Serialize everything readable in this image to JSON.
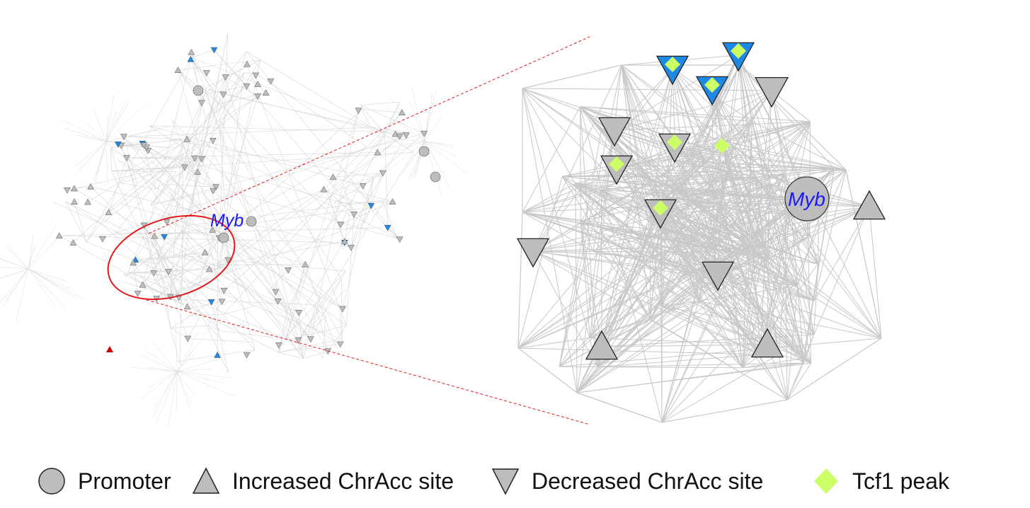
{
  "left_network": {
    "gene_label": "Myb"
  },
  "right_network": {
    "gene_label": "Myb"
  },
  "legend": [
    {
      "label": "Promoter",
      "shape": "circle"
    },
    {
      "label": "Increased ChrAcc site",
      "shape": "triangle-up"
    },
    {
      "label": "Decreased ChrAcc site",
      "shape": "triangle-down"
    },
    {
      "label": "Tcf1 peak",
      "shape": "diamond"
    }
  ],
  "colors": {
    "edge": "#c8c8c8",
    "node_gray": "#bdbdbd",
    "node_outline": "#333333",
    "highlight_blue": "#1e88e5",
    "tcf1_peak": "#ccff66",
    "selection_red": "#e31a1c",
    "gene_label": "#1a1aff"
  }
}
